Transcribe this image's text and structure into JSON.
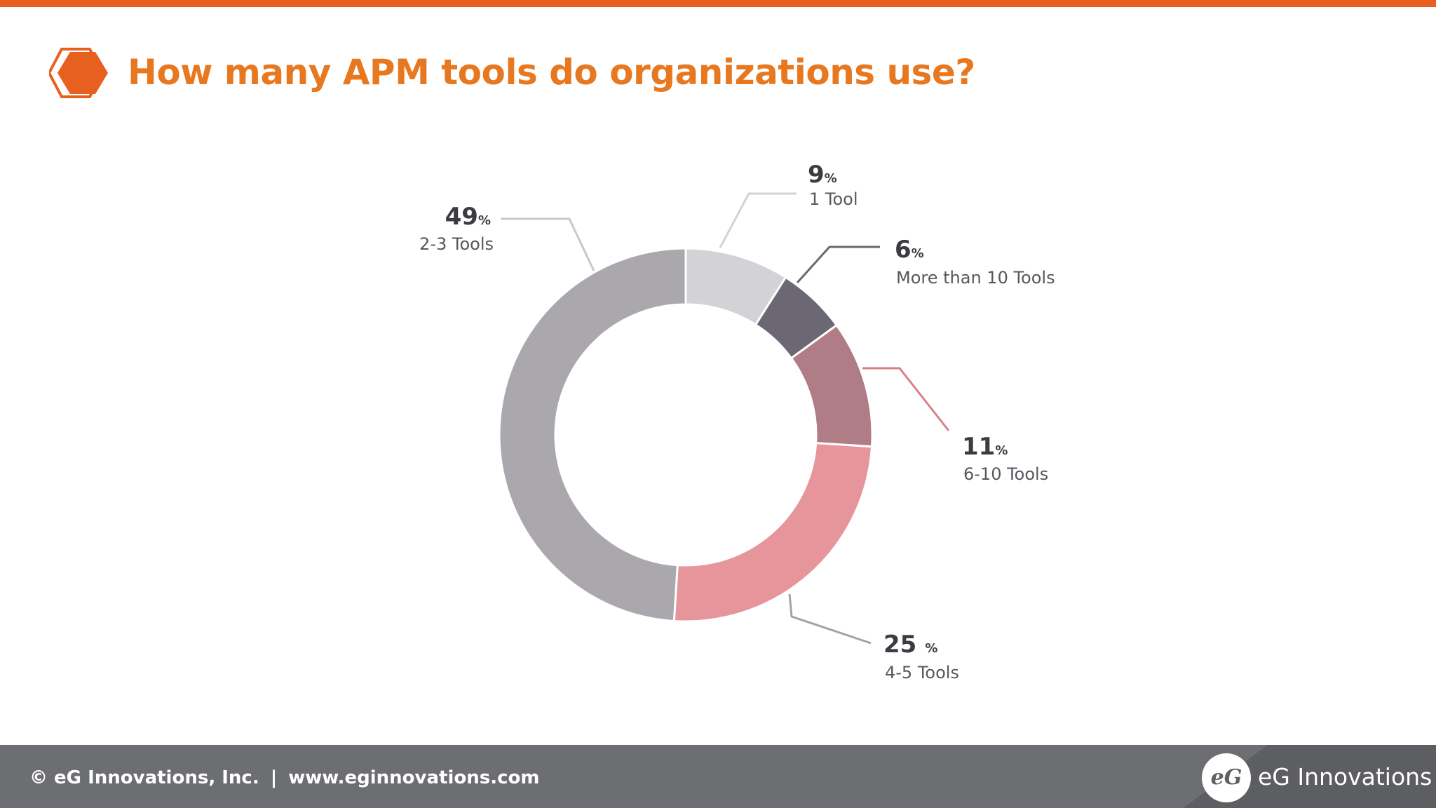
{
  "header": {
    "title": "How many APM tools do organizations use?",
    "accent_color": "#e8601f",
    "title_color": "#e8781f",
    "icon": "hexagon-icon"
  },
  "chart_data": {
    "type": "pie",
    "donut": true,
    "title": "",
    "percent_sign": "%",
    "slices": [
      {
        "label": "1 Tool",
        "value": 9,
        "color": "#d3d2d6"
      },
      {
        "label": "More than 10 Tools",
        "value": 6,
        "color": "#6b6874"
      },
      {
        "label": "6-10 Tools",
        "value": 11,
        "color": "#b07c86"
      },
      {
        "label": "4-5 Tools",
        "value": 25,
        "color": "#e6959b"
      },
      {
        "label": "2-3 Tools",
        "value": 49,
        "color": "#aaa8ad"
      }
    ]
  },
  "footer": {
    "copyright": "© eG Innovations, Inc.",
    "separator": "|",
    "website": "www.eginnovations.com",
    "brand_name": "eG Innovations",
    "logo_text": "eG",
    "background_color": "#6d6e72"
  }
}
